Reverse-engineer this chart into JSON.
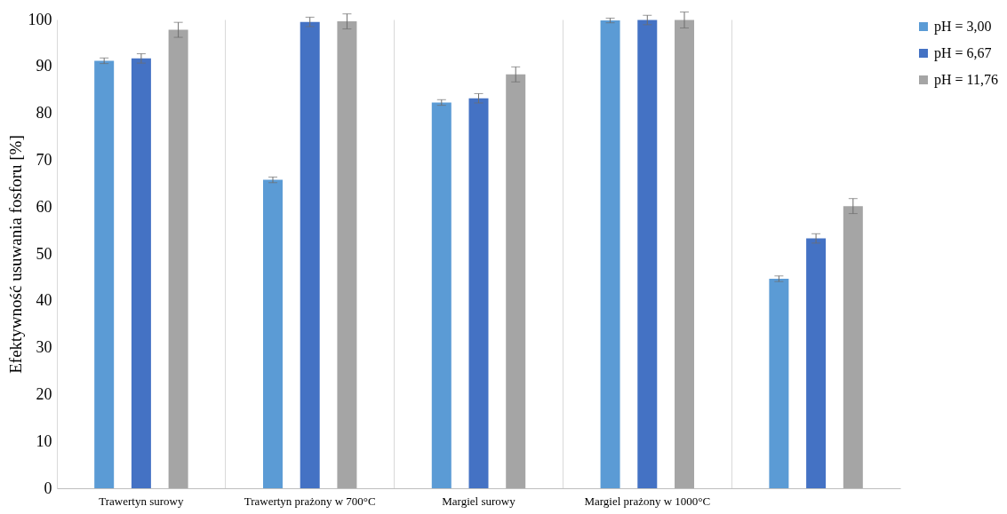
{
  "chart_data": {
    "type": "bar",
    "ylabel": "Efektywność usuwania fosforu [%]",
    "categories": [
      "Trawertyn surowy",
      "Trawertyn prażony w 700°C",
      "Margiel surowy",
      "Margiel prażony w 1000°C",
      null
    ],
    "series": [
      {
        "name": "pH = 3,00",
        "color": "#5b9bd5",
        "values": [
          91.2,
          65.8,
          82.3,
          99.8,
          44.7
        ],
        "errors": [
          0.6,
          0.6,
          0.6,
          0.5,
          0.6
        ]
      },
      {
        "name": "pH = 6,67",
        "color": "#4472c4",
        "values": [
          91.7,
          99.5,
          83.2,
          99.9,
          53.3
        ],
        "errors": [
          1.0,
          1.0,
          1.0,
          1.0,
          1.0
        ]
      },
      {
        "name": "pH = 11,76",
        "color": "#a5a5a5",
        "values": [
          97.8,
          99.6,
          88.3,
          99.9,
          60.2
        ],
        "errors": [
          1.6,
          1.6,
          1.6,
          1.7,
          1.6
        ]
      }
    ],
    "ylim": [
      0,
      100
    ],
    "yticks": [
      0,
      10,
      20,
      30,
      40,
      50,
      60,
      70,
      80,
      90,
      100
    ],
    "grid": "x",
    "legend": "right"
  }
}
